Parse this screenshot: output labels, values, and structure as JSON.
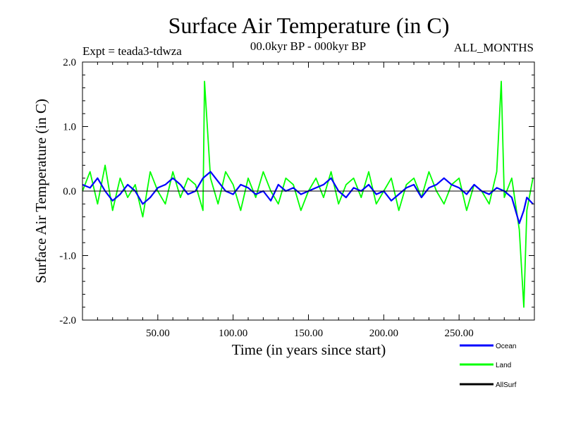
{
  "chart_data": {
    "type": "line",
    "title": "Surface Air Temperature (in C)",
    "subtitle_left": "Expt = teada3-tdwza",
    "subtitle_center": "00.0kyr BP - 000kyr BP",
    "subtitle_right": "ALL_MONTHS",
    "xlabel": "Time (in years since start)",
    "ylabel": "Surface Air Temperature (in C)",
    "xlim": [
      0,
      300
    ],
    "ylim": [
      -2.0,
      2.0
    ],
    "x_ticks": [
      50,
      100,
      150,
      200,
      250
    ],
    "x_tick_labels": [
      "50.00",
      "100.00",
      "150.00",
      "200.00",
      "250.00"
    ],
    "y_ticks": [
      -2.0,
      -1.0,
      0.0,
      1.0,
      2.0
    ],
    "y_tick_labels": [
      "-2.0",
      "-1.0",
      "0.0",
      "1.0",
      "2.0"
    ],
    "zero_line": 0.0,
    "series": [
      {
        "name": "Land",
        "color": "#00ff00",
        "x": [
          0,
          5,
          10,
          15,
          20,
          25,
          30,
          35,
          40,
          45,
          50,
          55,
          60,
          65,
          70,
          75,
          80,
          81,
          85,
          90,
          95,
          100,
          105,
          110,
          115,
          120,
          125,
          130,
          135,
          140,
          145,
          150,
          155,
          160,
          165,
          170,
          175,
          180,
          185,
          190,
          195,
          200,
          205,
          210,
          215,
          220,
          225,
          230,
          235,
          240,
          245,
          250,
          255,
          260,
          265,
          270,
          275,
          278,
          280,
          285,
          290,
          293,
          295,
          299
        ],
        "values": [
          0.0,
          0.3,
          -0.2,
          0.4,
          -0.3,
          0.2,
          -0.1,
          0.1,
          -0.4,
          0.3,
          0.0,
          -0.2,
          0.3,
          -0.1,
          0.2,
          0.1,
          -0.3,
          1.7,
          0.2,
          -0.2,
          0.3,
          0.1,
          -0.3,
          0.2,
          -0.1,
          0.3,
          0.0,
          -0.2,
          0.2,
          0.1,
          -0.3,
          0.0,
          0.2,
          -0.1,
          0.3,
          -0.2,
          0.1,
          0.2,
          -0.1,
          0.3,
          -0.2,
          0.0,
          0.2,
          -0.3,
          0.1,
          0.2,
          -0.1,
          0.3,
          0.0,
          -0.2,
          0.1,
          0.2,
          -0.3,
          0.1,
          0.0,
          -0.2,
          0.3,
          1.7,
          -0.1,
          0.2,
          -0.6,
          -1.8,
          -0.3,
          0.2
        ]
      },
      {
        "name": "Ocean",
        "color": "#0000ff",
        "x": [
          0,
          5,
          10,
          15,
          20,
          25,
          30,
          35,
          40,
          45,
          50,
          55,
          60,
          65,
          70,
          75,
          80,
          85,
          90,
          95,
          100,
          105,
          110,
          115,
          120,
          125,
          130,
          135,
          140,
          145,
          150,
          155,
          160,
          165,
          170,
          175,
          180,
          185,
          190,
          195,
          200,
          205,
          210,
          215,
          220,
          225,
          230,
          235,
          240,
          245,
          250,
          255,
          260,
          265,
          270,
          275,
          280,
          285,
          290,
          293,
          295,
          299
        ],
        "values": [
          0.1,
          0.05,
          0.2,
          0.0,
          -0.15,
          -0.05,
          0.1,
          0.0,
          -0.2,
          -0.1,
          0.05,
          0.1,
          0.2,
          0.1,
          -0.05,
          0.0,
          0.2,
          0.3,
          0.15,
          0.0,
          -0.05,
          0.1,
          0.05,
          -0.05,
          0.0,
          -0.15,
          0.1,
          0.0,
          0.05,
          -0.05,
          0.0,
          0.05,
          0.1,
          0.2,
          0.0,
          -0.1,
          0.05,
          0.0,
          0.1,
          -0.05,
          0.0,
          -0.15,
          -0.05,
          0.05,
          0.1,
          -0.1,
          0.05,
          0.1,
          0.2,
          0.1,
          0.05,
          -0.05,
          0.1,
          0.0,
          -0.05,
          0.05,
          0.0,
          -0.1,
          -0.5,
          -0.3,
          -0.1,
          -0.2
        ]
      },
      {
        "name": "AllSurf",
        "color": "#000000",
        "x": [],
        "values": []
      }
    ],
    "legend": {
      "position": "bottom-right",
      "entries": [
        "Ocean",
        "Land",
        "AllSurf"
      ]
    }
  }
}
